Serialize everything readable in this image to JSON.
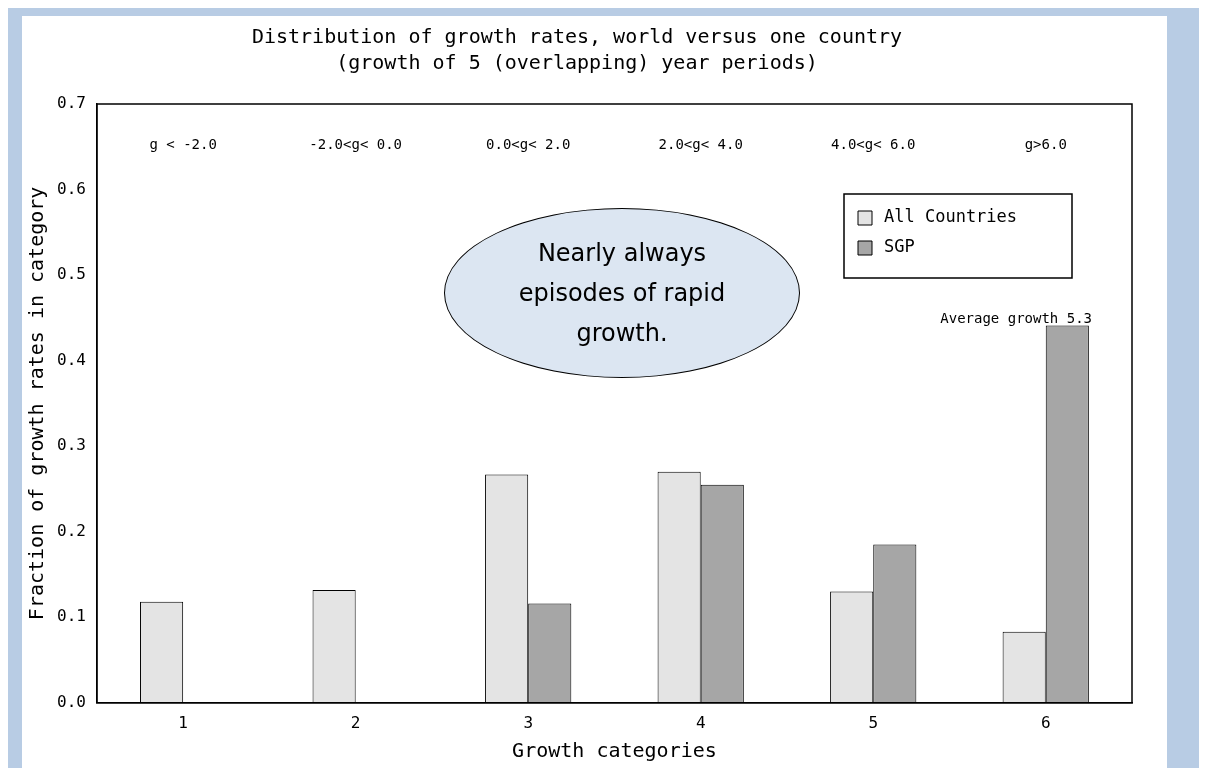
{
  "chart_data": {
    "type": "bar",
    "title": "Distribution of growth rates, world versus one country",
    "subtitle": "(growth of 5 (overlapping) year periods)",
    "xlabel": "Growth categories",
    "ylabel": "Fraction of growth rates in category",
    "categories": [
      "1",
      "2",
      "3",
      "4",
      "5",
      "6"
    ],
    "series": [
      {
        "name": "All Countries",
        "color": "#e4e4e4",
        "values": [
          0.118,
          0.132,
          0.267,
          0.27,
          0.13,
          0.083
        ]
      },
      {
        "name": "SGP",
        "color": "#a6a6a6",
        "values": [
          0,
          0,
          0.116,
          0.255,
          0.185,
          0.441
        ]
      }
    ],
    "ylim": [
      0,
      0.7
    ],
    "yticks": [
      {
        "value": 0,
        "label": "0.0"
      },
      0.1,
      0.2,
      0.3,
      0.4,
      0.5,
      0.6,
      0.7
    ],
    "grid": false,
    "legend": "top right",
    "annotations": [
      "g < -2.0",
      "-2.0<g< 0.0",
      "0.0<g< 2.0",
      "2.0<g< 4.0",
      "4.0<g< 6.0",
      "g>6.0",
      "Average growth 5.3",
      "Nearly always episodes of rapid growth."
    ]
  }
}
